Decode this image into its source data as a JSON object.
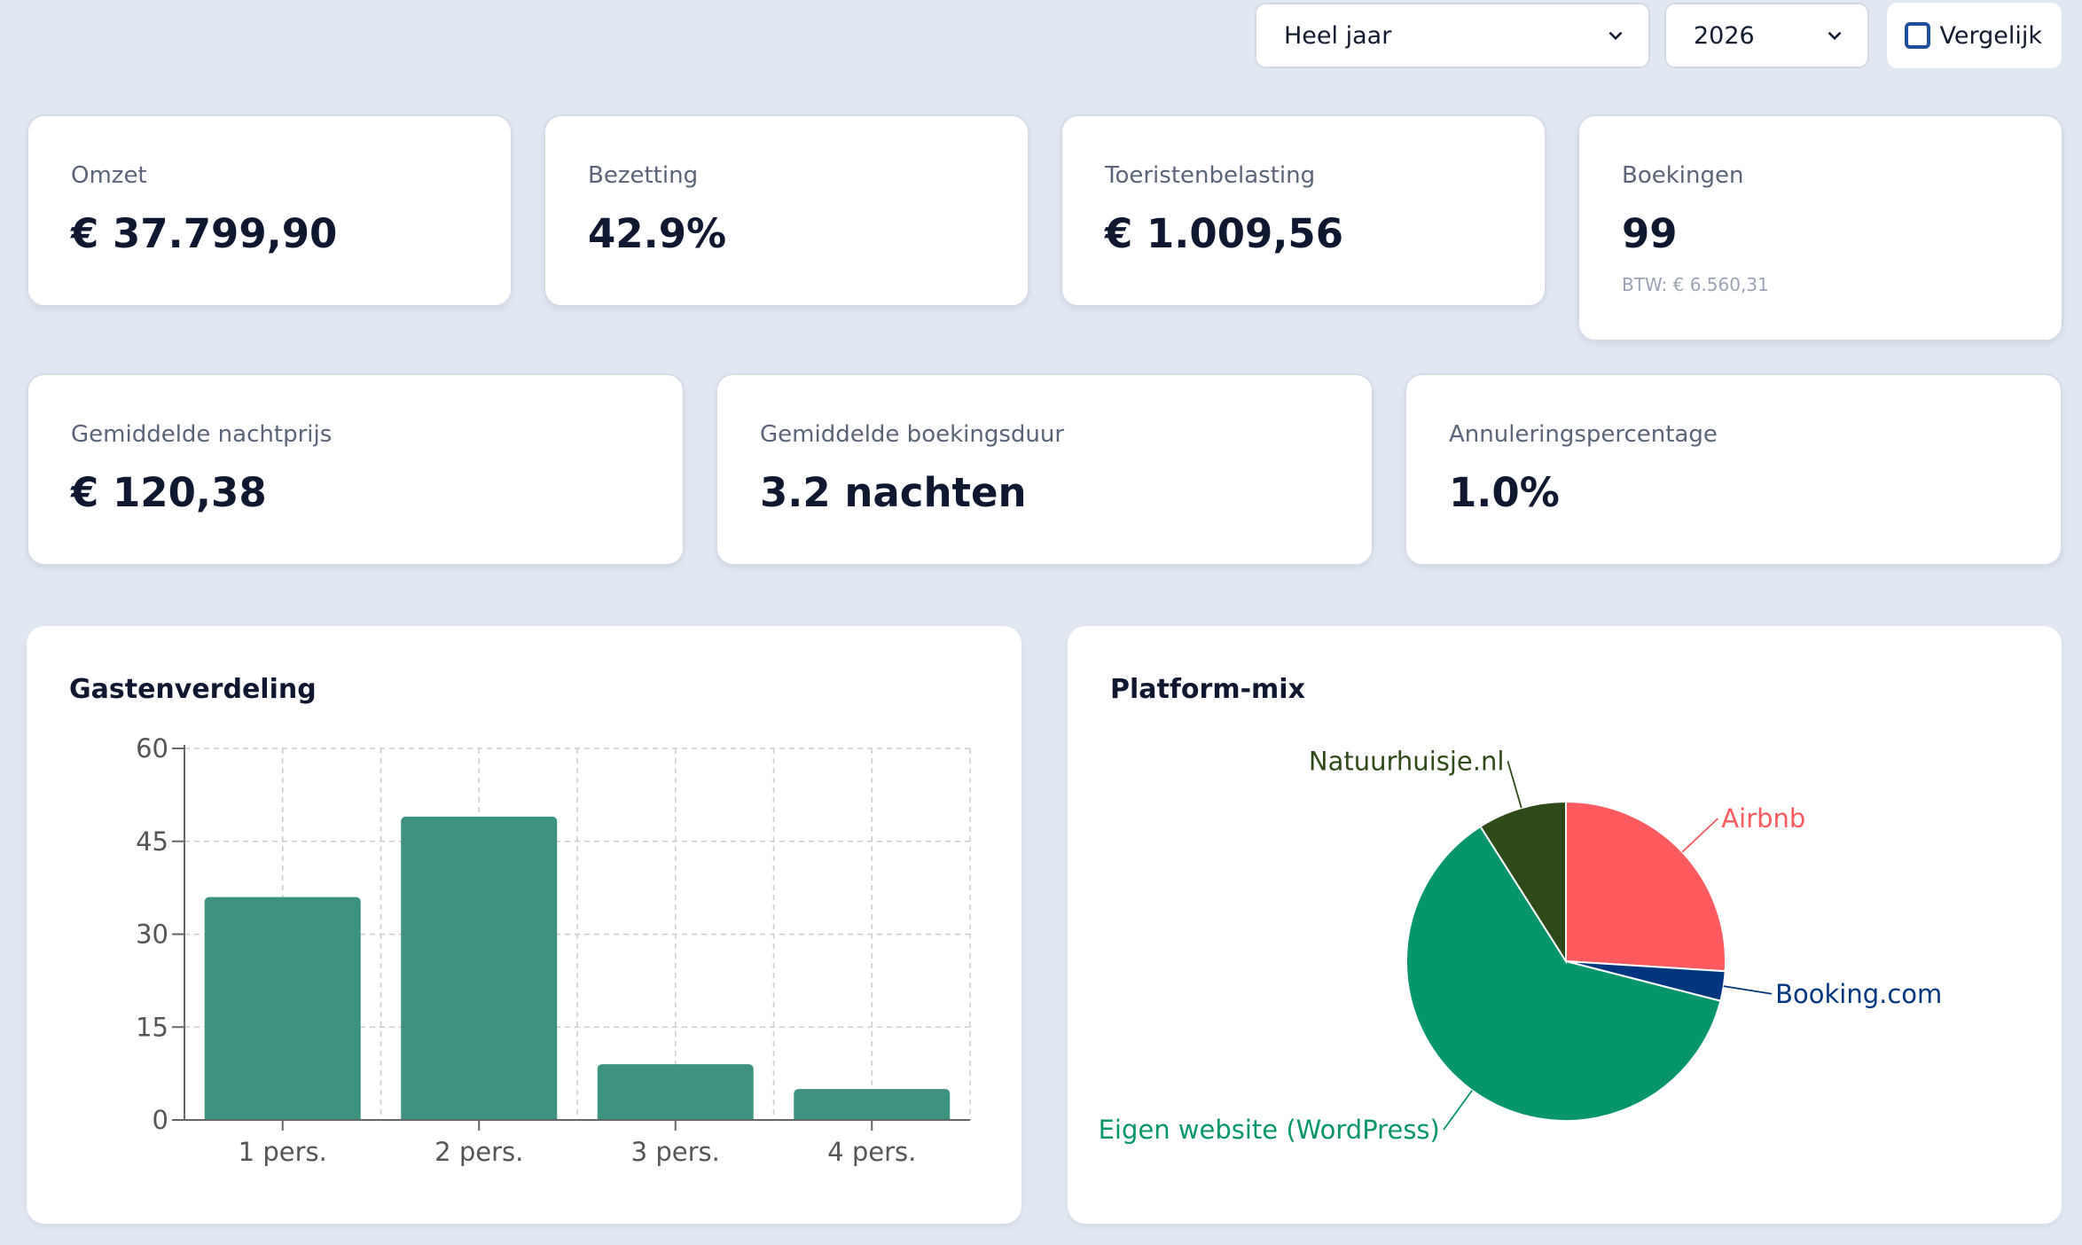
{
  "filters": {
    "period": "Heel jaar",
    "year": "2026",
    "compare_label": "Vergelijk",
    "compare_checked": false
  },
  "kpis_row1": [
    {
      "label": "Omzet",
      "value": "€ 37.799,90"
    },
    {
      "label": "Bezetting",
      "value": "42.9%"
    },
    {
      "label": "Toeristenbelasting",
      "value": "€ 1.009,56"
    },
    {
      "label": "Boekingen",
      "value": "99",
      "sub": "BTW: € 6.560,31"
    }
  ],
  "kpis_row2": [
    {
      "label": "Gemiddelde nachtprijs",
      "value": "€ 120,38"
    },
    {
      "label": "Gemiddelde boekingsduur",
      "value": "3.2 nachten"
    },
    {
      "label": "Annuleringspercentage",
      "value": "1.0%"
    }
  ],
  "panels": {
    "guests_title": "Gastenverdeling",
    "platform_title": "Platform-mix"
  },
  "colors": {
    "bar": "#3d9380",
    "grid": "#c9ced6",
    "axis": "#666666"
  },
  "chart_data": [
    {
      "type": "bar",
      "title": "Gastenverdeling",
      "categories": [
        "1 pers.",
        "2 pers.",
        "3 pers.",
        "4 pers."
      ],
      "values": [
        36,
        49,
        9,
        5
      ],
      "ylim": [
        0,
        60
      ],
      "yticks": [
        0,
        15,
        30,
        45,
        60
      ],
      "grid": true
    },
    {
      "type": "pie",
      "title": "Platform-mix",
      "slices": [
        {
          "label": "Airbnb",
          "value": 26,
          "color": "#ff5a5f"
        },
        {
          "label": "Booking.com",
          "value": 3,
          "color": "#003580"
        },
        {
          "label": "Eigen website (WordPress)",
          "value": 62,
          "color": "#07956b"
        },
        {
          "label": "Natuurhuisje.nl",
          "value": 9,
          "color": "#2d4a17"
        }
      ]
    }
  ]
}
